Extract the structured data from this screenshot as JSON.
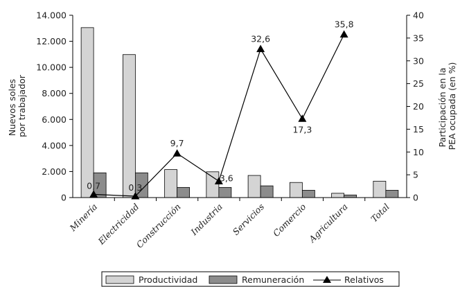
{
  "chart_data": {
    "type": "bar",
    "categories": [
      "Minería",
      "Electricidad",
      "Construcción",
      "Industria",
      "Servicios",
      "Comercio",
      "Agricultura",
      "Total"
    ],
    "series": [
      {
        "name": "Productividad",
        "kind": "bar",
        "axis": "left",
        "color": "#d4d4d4",
        "values": [
          13050,
          10980,
          2150,
          1980,
          1700,
          1160,
          330,
          1260
        ]
      },
      {
        "name": "Remuneración",
        "kind": "bar",
        "axis": "left",
        "color": "#8c8c8c",
        "values": [
          1900,
          1900,
          780,
          780,
          900,
          560,
          200,
          560
        ]
      },
      {
        "name": "Relativos",
        "kind": "line",
        "axis": "right",
        "color": "#000000",
        "values": [
          0.7,
          0.3,
          9.7,
          3.6,
          32.6,
          17.3,
          35.8,
          null
        ],
        "labels": [
          "0,7",
          "0,3",
          "9,7",
          "3,6",
          "32,6",
          "17,3",
          "35,8",
          ""
        ]
      }
    ],
    "ylabel": [
      "Nuevos soles",
      "por trabajador"
    ],
    "ylim": [
      0,
      14000
    ],
    "yticks": [
      "0",
      "2.000",
      "4.000",
      "6.000",
      "8.000",
      "10.000",
      "12.000",
      "14.000"
    ],
    "y2label": [
      "Participación en la",
      "PEA ocupada (en %)"
    ],
    "y2lim": [
      0,
      40
    ],
    "y2ticks": [
      "0",
      "5",
      "10",
      "15",
      "20",
      "25",
      "30",
      "35",
      "40"
    ],
    "xlabel": "",
    "grid": false,
    "legend_position": "bottom"
  }
}
